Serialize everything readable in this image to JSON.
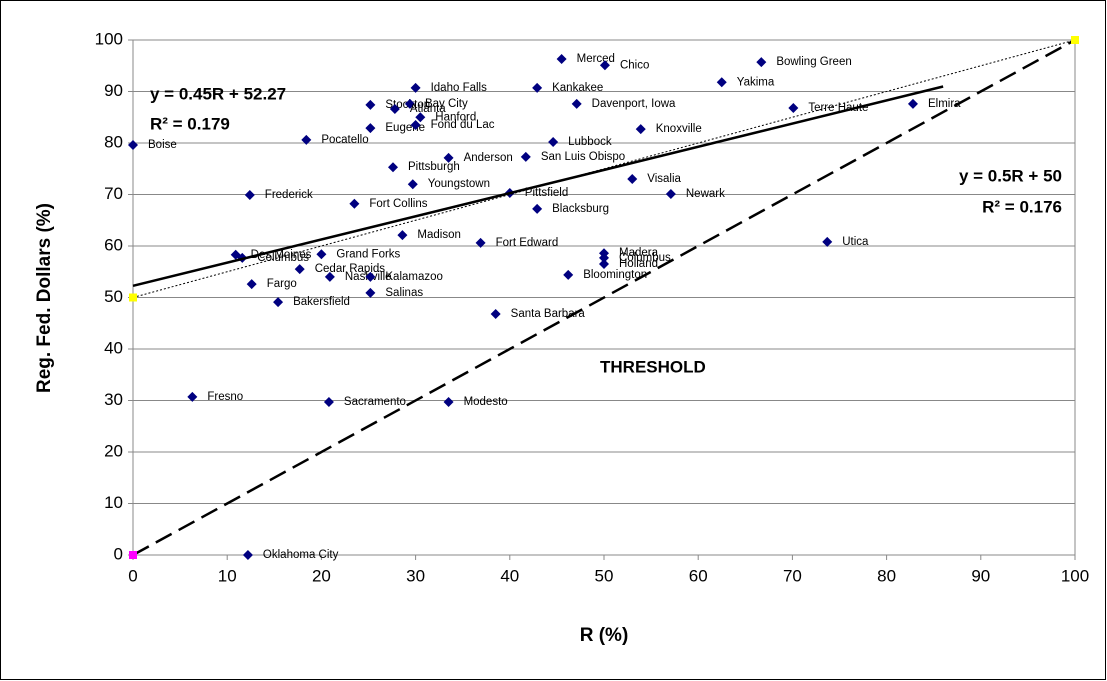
{
  "chart_data": {
    "type": "scatter",
    "x_label": "R (%)",
    "y_label": "Reg. Fed. Dollars (%)",
    "xlim": [
      0,
      100
    ],
    "ylim": [
      0,
      100
    ],
    "xticks": [
      0,
      10,
      20,
      30,
      40,
      50,
      60,
      70,
      80,
      90,
      100
    ],
    "yticks": [
      0,
      10,
      20,
      30,
      40,
      50,
      60,
      70,
      80,
      90,
      100
    ],
    "grid": true,
    "series": [
      {
        "color": "#000080",
        "marker": "diamond",
        "point_labels": [
          "Merced",
          "Chico",
          "Bowling Green",
          "Yakima",
          "Idaho Falls",
          "Kankakee",
          "Stockton",
          "Bay City",
          "Atlanta",
          "Hanford",
          "Davenport, Iowa",
          "Terre Haute",
          "Elmira",
          "Eugene",
          "Fond du Lac",
          "Knoxville",
          "Pocatello",
          "Boise",
          "Lubbock",
          "Anderson",
          "San Luis Obispo",
          "Pittsburgh",
          "Visalia",
          "Youngstown",
          "Frederick",
          "Pittsfield",
          "Newark",
          "Fort Collins",
          "Blacksburg",
          "Madison",
          "Fort Edward",
          "Utica",
          "Grand Forks",
          "Madera",
          "Columbus",
          "Holland",
          "Des Moines",
          "Columbus",
          "Cedar Rapids",
          "Nashville",
          "Kalamazoo",
          "Bloomington",
          "Fargo",
          "Salinas",
          "Bakersfield",
          "Santa Barbara",
          "Fresno",
          "Sacramento",
          "Modesto",
          "Oklahoma City"
        ],
        "x": [
          45.5,
          50.1,
          66.7,
          62.5,
          30.0,
          42.9,
          25.2,
          29.4,
          27.8,
          30.5,
          47.1,
          70.1,
          82.8,
          25.2,
          30.0,
          53.9,
          18.4,
          0,
          44.6,
          33.5,
          41.7,
          27.6,
          53.0,
          29.7,
          12.4,
          40.0,
          57.1,
          23.5,
          42.9,
          28.6,
          36.9,
          73.7,
          20.0,
          50.0,
          50.0,
          50.0,
          10.9,
          11.6,
          17.7,
          20.9,
          25.2,
          46.2,
          12.6,
          25.2,
          15.4,
          38.5,
          6.3,
          20.8,
          33.5,
          12.2
        ],
        "values": [
          96.3,
          95.1,
          95.7,
          91.8,
          90.7,
          90.7,
          87.4,
          87.6,
          86.6,
          85.0,
          87.6,
          86.8,
          87.6,
          82.9,
          83.5,
          82.7,
          80.6,
          79.6,
          80.2,
          77.1,
          77.3,
          75.3,
          73.0,
          72.0,
          69.9,
          70.3,
          70.1,
          68.2,
          67.2,
          62.1,
          60.6,
          60.8,
          58.4,
          58.6,
          57.7,
          56.5,
          58.3,
          57.7,
          55.5,
          54.0,
          54.0,
          54.4,
          52.6,
          50.9,
          49.1,
          46.8,
          30.7,
          29.7,
          29.7,
          0
        ]
      },
      {
        "line": "solid",
        "color": "#000000",
        "x": [
          0,
          86
        ],
        "values": [
          52.27,
          90.97
        ]
      },
      {
        "line": "dotted",
        "color": "#000000",
        "x": [
          0,
          100
        ],
        "values": [
          50,
          100
        ]
      },
      {
        "line": "dashed",
        "color": "#000000",
        "x": [
          0,
          100
        ],
        "values": [
          0,
          100
        ]
      },
      {
        "marker": "square",
        "color": "#ff00ff",
        "x": [
          0,
          100
        ],
        "values": [
          0,
          100
        ]
      },
      {
        "marker": "square",
        "color": "#ffff00",
        "x": [
          0,
          100
        ],
        "values": [
          50,
          100
        ]
      }
    ],
    "annotations": [
      "y = 0.45R + 52.27",
      "R² = 0.179",
      "y = 0.5R + 50",
      "R² = 0.176",
      "THRESHOLD"
    ]
  }
}
